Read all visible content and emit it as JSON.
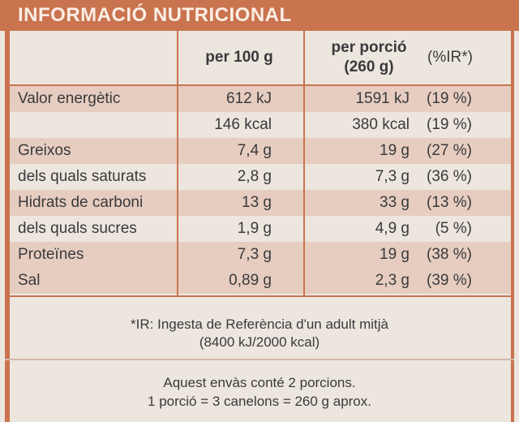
{
  "header": {
    "title": "INFORMACIÓ NUTRICIONAL"
  },
  "table": {
    "columns": {
      "per_100": "per 100 g",
      "per_portion": [
        "per porció",
        "(260 g)"
      ],
      "ir": "(%IR*)"
    },
    "rows": [
      [
        "Valor energètic",
        "612 kJ",
        "1591 kJ",
        "(19 %)"
      ],
      [
        null,
        "146 kcal",
        "380 kcal",
        "(19 %)"
      ],
      [
        "Greixos",
        "7,4 g",
        "19 g",
        "(27 %)"
      ],
      [
        "dels quals saturats",
        "2,8 g",
        "7,3 g",
        "(36 %)"
      ],
      [
        "Hidrats de carboni",
        "13 g",
        "33 g",
        "(13 %)"
      ],
      [
        "dels quals sucres",
        "1,9 g",
        "4,9 g",
        "(5 %)"
      ],
      [
        "Proteïnes",
        "7,3 g",
        "19 g",
        "(38 %)"
      ],
      [
        "Sal",
        "0,89 g",
        "2,3 g",
        "(39 %)"
      ]
    ]
  },
  "footnote": [
    "*IR: Ingesta de Referència d'un adult mitjà",
    "(8400 kJ/2000 kcal)"
  ],
  "note": [
    "Aquest envàs conté 2 porcions.",
    "1 porció = 3 canelons  = 260 g aprox."
  ]
}
